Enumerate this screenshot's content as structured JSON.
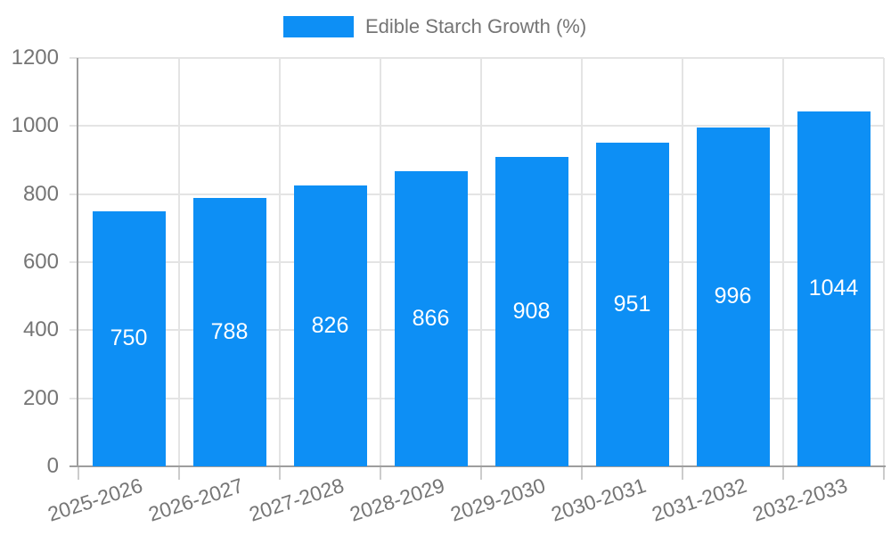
{
  "chart_data": {
    "type": "bar",
    "title": "",
    "legend_position": "top-center",
    "categories": [
      "2025-2026",
      "2026-2027",
      "2027-2028",
      "2028-2029",
      "2029-2030",
      "2030-2031",
      "2031-2032",
      "2032-2033"
    ],
    "series": [
      {
        "name": "Edible Starch Growth (%)",
        "values": [
          750,
          788,
          826,
          866,
          908,
          951,
          996,
          1044
        ],
        "color": "#0d8ff5"
      }
    ],
    "bar_value_labels": [
      750,
      788,
      826,
      866,
      908,
      951,
      996,
      1044
    ],
    "xlabel": "",
    "ylabel": "",
    "ylim": [
      0,
      1200
    ],
    "yticks": [
      0,
      200,
      400,
      600,
      800,
      1000,
      1200
    ],
    "grid": true,
    "value_label_position": "inside-center"
  },
  "colors": {
    "bar": "#0d8ff5",
    "text": "#757575",
    "bar_label_text": "#ffffff",
    "gridline": "#e4e4e4",
    "axis": "#9e9e9e",
    "tick": "#cccccc",
    "background": "#ffffff"
  }
}
